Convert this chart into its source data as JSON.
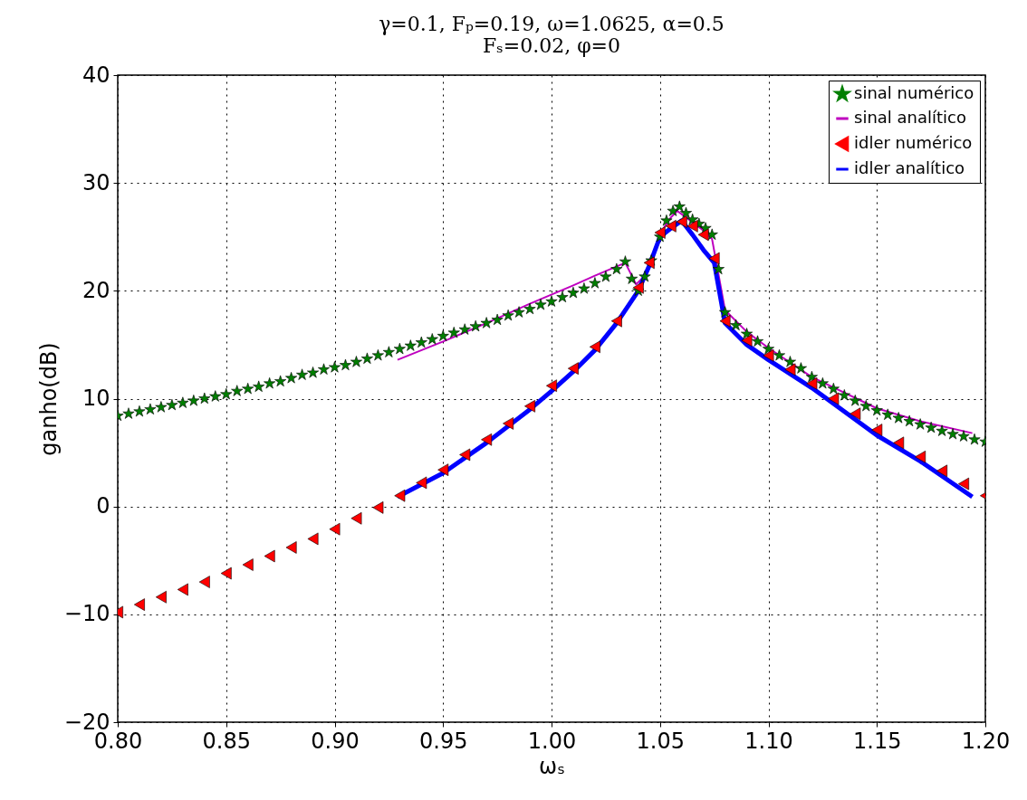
{
  "chart_data": {
    "type": "scatter",
    "title": "γ=0.1, Fₚ=0.19, ω=1.0625, α=0.5",
    "subtitle": "Fₛ=0.02, φ=0",
    "xlabel": "ωₛ",
    "ylabel": "ganho(dB)",
    "xlim": [
      0.8,
      1.2
    ],
    "ylim": [
      -20,
      40
    ],
    "xticks": [
      {
        "value": 0.8,
        "label": "0.80"
      },
      {
        "value": 0.85,
        "label": "0.85"
      },
      {
        "value": 0.9,
        "label": "0.90"
      },
      {
        "value": 0.95,
        "label": "0.95"
      },
      {
        "value": 1.0,
        "label": "1.00"
      },
      {
        "value": 1.05,
        "label": "1.05"
      },
      {
        "value": 1.1,
        "label": "1.10"
      },
      {
        "value": 1.15,
        "label": "1.15"
      },
      {
        "value": 1.2,
        "label": "1.20"
      }
    ],
    "yticks": [
      {
        "value": -20,
        "label": "−20"
      },
      {
        "value": -10,
        "label": "−10"
      },
      0,
      10,
      20,
      30,
      40
    ],
    "grid": true,
    "legend": "top right",
    "series": [
      {
        "name": "sinal numérico",
        "marker": "star",
        "color": "#007f00",
        "x": [
          0.8,
          0.805,
          0.81,
          0.815,
          0.82,
          0.825,
          0.83,
          0.835,
          0.84,
          0.845,
          0.85,
          0.855,
          0.86,
          0.865,
          0.87,
          0.875,
          0.88,
          0.885,
          0.89,
          0.895,
          0.9,
          0.905,
          0.91,
          0.915,
          0.92,
          0.925,
          0.93,
          0.935,
          0.94,
          0.945,
          0.95,
          0.955,
          0.96,
          0.965,
          0.97,
          0.975,
          0.98,
          0.985,
          0.99,
          0.995,
          1.0,
          1.005,
          1.01,
          1.015,
          1.02,
          1.025,
          1.03,
          1.034,
          1.037,
          1.04,
          1.043,
          1.046,
          1.05,
          1.053,
          1.056,
          1.059,
          1.062,
          1.065,
          1.068,
          1.071,
          1.074,
          1.077,
          1.08,
          1.085,
          1.09,
          1.095,
          1.1,
          1.105,
          1.11,
          1.115,
          1.12,
          1.125,
          1.13,
          1.135,
          1.14,
          1.145,
          1.15,
          1.155,
          1.16,
          1.165,
          1.17,
          1.175,
          1.18,
          1.185,
          1.19,
          1.195,
          1.2
        ],
        "values": [
          8.4,
          8.6,
          8.8,
          9.0,
          9.2,
          9.4,
          9.6,
          9.8,
          10.0,
          10.2,
          10.4,
          10.7,
          10.9,
          11.1,
          11.4,
          11.6,
          11.9,
          12.2,
          12.4,
          12.7,
          12.9,
          13.1,
          13.4,
          13.7,
          14.0,
          14.3,
          14.6,
          14.9,
          15.2,
          15.5,
          15.8,
          16.1,
          16.4,
          16.7,
          17.0,
          17.3,
          17.7,
          18.0,
          18.3,
          18.7,
          19.0,
          19.4,
          19.8,
          20.2,
          20.7,
          21.3,
          22.0,
          22.7,
          21.1,
          20.0,
          21.3,
          22.8,
          25.0,
          26.5,
          27.4,
          27.8,
          27.2,
          26.6,
          26.2,
          25.8,
          25.2,
          22.0,
          18.0,
          16.8,
          16.0,
          15.3,
          14.6,
          14.0,
          13.4,
          12.8,
          12.0,
          11.4,
          10.9,
          10.3,
          9.8,
          9.3,
          8.9,
          8.5,
          8.2,
          7.9,
          7.6,
          7.3,
          7.0,
          6.7,
          6.5,
          6.2,
          6.0
        ]
      },
      {
        "name": "sinal analítico",
        "type": "line",
        "color": "#bf00bf",
        "x": [
          0.929,
          0.95,
          0.97,
          0.99,
          1.01,
          1.02,
          1.034,
          1.039,
          1.042,
          1.046,
          1.05,
          1.055,
          1.058,
          1.062,
          1.066,
          1.07,
          1.074,
          1.077,
          1.08,
          1.09,
          1.1,
          1.12,
          1.15,
          1.17,
          1.194
        ],
        "values": [
          13.6,
          15.3,
          17.0,
          18.8,
          20.5,
          21.4,
          22.6,
          20.6,
          21.2,
          22.5,
          25.3,
          26.8,
          27.4,
          26.8,
          26.2,
          25.6,
          24.8,
          21.5,
          18.2,
          16.2,
          14.7,
          12.0,
          9.1,
          7.9,
          6.8
        ]
      },
      {
        "name": "idler numérico",
        "marker": "triangle",
        "color": "#ff0000",
        "x": [
          0.8,
          0.81,
          0.82,
          0.83,
          0.84,
          0.85,
          0.86,
          0.87,
          0.88,
          0.89,
          0.9,
          0.91,
          0.92,
          0.93,
          0.94,
          0.95,
          0.96,
          0.97,
          0.98,
          0.99,
          1.0,
          1.01,
          1.02,
          1.03,
          1.04,
          1.045,
          1.05,
          1.055,
          1.06,
          1.065,
          1.07,
          1.075,
          1.08,
          1.09,
          1.1,
          1.11,
          1.12,
          1.13,
          1.14,
          1.15,
          1.16,
          1.17,
          1.18,
          1.19,
          1.2
        ],
        "values": [
          -9.8,
          -9.1,
          -8.4,
          -7.7,
          -7.0,
          -6.2,
          -5.4,
          -4.6,
          -3.8,
          -3.0,
          -2.1,
          -1.1,
          -0.1,
          1.0,
          2.2,
          3.4,
          4.8,
          6.2,
          7.7,
          9.3,
          11.2,
          12.8,
          14.8,
          17.2,
          20.3,
          22.6,
          25.4,
          26.0,
          26.4,
          26.0,
          25.2,
          23.0,
          17.2,
          15.4,
          14.0,
          12.7,
          11.4,
          10.0,
          8.6,
          7.1,
          5.9,
          4.6,
          3.3,
          2.1,
          1.0
        ]
      },
      {
        "name": "idler analítico",
        "type": "line",
        "color": "#0000ff",
        "x": [
          0.929,
          0.95,
          0.97,
          0.99,
          1.0,
          1.01,
          1.02,
          1.03,
          1.04,
          1.045,
          1.05,
          1.055,
          1.06,
          1.065,
          1.07,
          1.075,
          1.08,
          1.09,
          1.1,
          1.12,
          1.15,
          1.17,
          1.194
        ],
        "values": [
          0.9,
          3.1,
          5.9,
          9.0,
          10.7,
          12.5,
          14.5,
          17.0,
          20.0,
          22.3,
          25.0,
          25.8,
          26.5,
          25.2,
          23.8,
          22.6,
          17.0,
          15.0,
          13.6,
          11.0,
          6.6,
          4.2,
          0.9
        ]
      }
    ]
  }
}
